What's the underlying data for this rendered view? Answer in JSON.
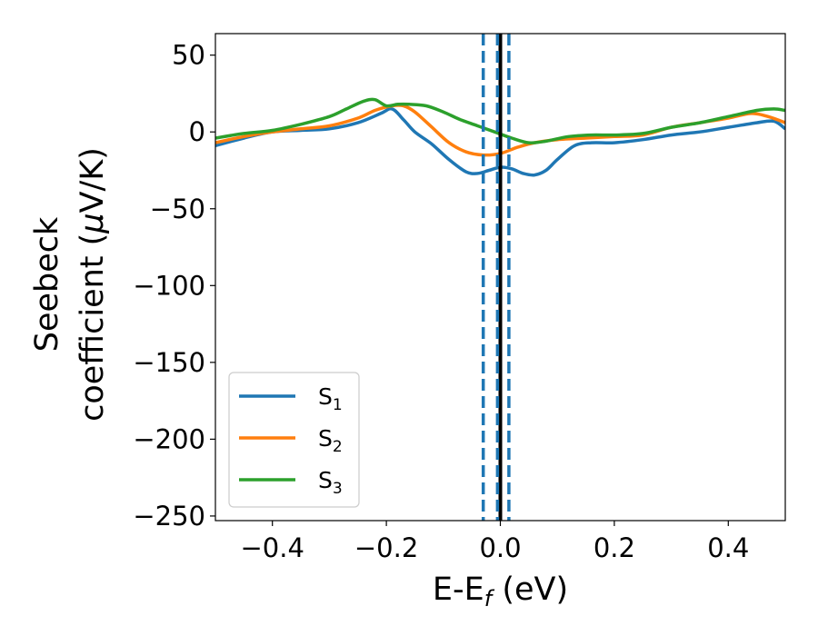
{
  "chart_data": {
    "type": "line",
    "title": "",
    "xlabel": {
      "main": "E-E",
      "sub": "f",
      "suffix": " (eV)"
    },
    "ylabel": {
      "line1": "Seebeck",
      "line2_prefix": "coefficient  (",
      "mu": "μ",
      "line2_suffix": "V/K)"
    },
    "xlim": [
      -0.5,
      0.5
    ],
    "ylim": [
      -253,
      64
    ],
    "xticks": [
      -0.4,
      -0.2,
      0.0,
      0.2,
      0.4
    ],
    "xtick_labels": [
      "−0.4",
      "−0.2",
      "0.0",
      "0.2",
      "0.4"
    ],
    "yticks": [
      50,
      0,
      -50,
      -100,
      -150,
      -200,
      -250
    ],
    "ytick_labels": [
      "50",
      "0",
      "−50",
      "−100",
      "−150",
      "−200",
      "−250"
    ],
    "grid": false,
    "legend_position": "lower-left",
    "vlines": [
      {
        "x": 0.0,
        "style": "solid",
        "color": "#000000"
      },
      {
        "x": -0.03,
        "style": "dashed",
        "color": "#1f77b4"
      },
      {
        "x": -0.005,
        "style": "dashed",
        "color": "#1f77b4"
      },
      {
        "x": 0.015,
        "style": "dashed",
        "color": "#1f77b4"
      }
    ],
    "series": [
      {
        "name": "S",
        "sub": "1",
        "color": "#1f77b4",
        "x": [
          -0.5,
          -0.45,
          -0.4,
          -0.35,
          -0.3,
          -0.25,
          -0.21,
          -0.19,
          -0.17,
          -0.15,
          -0.12,
          -0.09,
          -0.06,
          -0.04,
          -0.02,
          0.0,
          0.02,
          0.04,
          0.06,
          0.08,
          0.1,
          0.13,
          0.16,
          0.2,
          0.25,
          0.3,
          0.35,
          0.4,
          0.45,
          0.48,
          0.5
        ],
        "y": [
          -9,
          -4,
          0,
          1,
          2,
          6,
          12,
          15,
          8,
          0,
          -8,
          -18,
          -26,
          -27,
          -25,
          -23,
          -24,
          -27,
          -28,
          -25,
          -18,
          -9,
          -7,
          -7,
          -5,
          -2,
          0,
          3,
          6,
          7,
          2
        ]
      },
      {
        "name": "S",
        "sub": "2",
        "color": "#ff7f0e",
        "x": [
          -0.5,
          -0.45,
          -0.4,
          -0.35,
          -0.3,
          -0.25,
          -0.22,
          -0.19,
          -0.17,
          -0.15,
          -0.12,
          -0.09,
          -0.06,
          -0.03,
          0.0,
          0.03,
          0.06,
          0.1,
          0.15,
          0.2,
          0.25,
          0.3,
          0.35,
          0.4,
          0.44,
          0.47,
          0.5
        ],
        "y": [
          -7,
          -3,
          0,
          2,
          4,
          9,
          14,
          17,
          17,
          13,
          3,
          -7,
          -13,
          -15,
          -14,
          -10,
          -7,
          -5,
          -4,
          -3,
          -2,
          3,
          6,
          9,
          12,
          10,
          6
        ]
      },
      {
        "name": "S",
        "sub": "3",
        "color": "#2ca02c",
        "x": [
          -0.5,
          -0.45,
          -0.4,
          -0.35,
          -0.3,
          -0.27,
          -0.24,
          -0.22,
          -0.2,
          -0.18,
          -0.16,
          -0.13,
          -0.1,
          -0.07,
          -0.04,
          -0.01,
          0.02,
          0.05,
          0.08,
          0.12,
          0.16,
          0.2,
          0.25,
          0.3,
          0.35,
          0.4,
          0.45,
          0.48,
          0.5
        ],
        "y": [
          -4,
          -1,
          1,
          5,
          10,
          15,
          20,
          21,
          17,
          18,
          18,
          17,
          13,
          8,
          4,
          0,
          -4,
          -7,
          -6,
          -3,
          -2,
          -2,
          -1,
          3,
          6,
          10,
          14,
          15,
          14
        ]
      }
    ]
  }
}
